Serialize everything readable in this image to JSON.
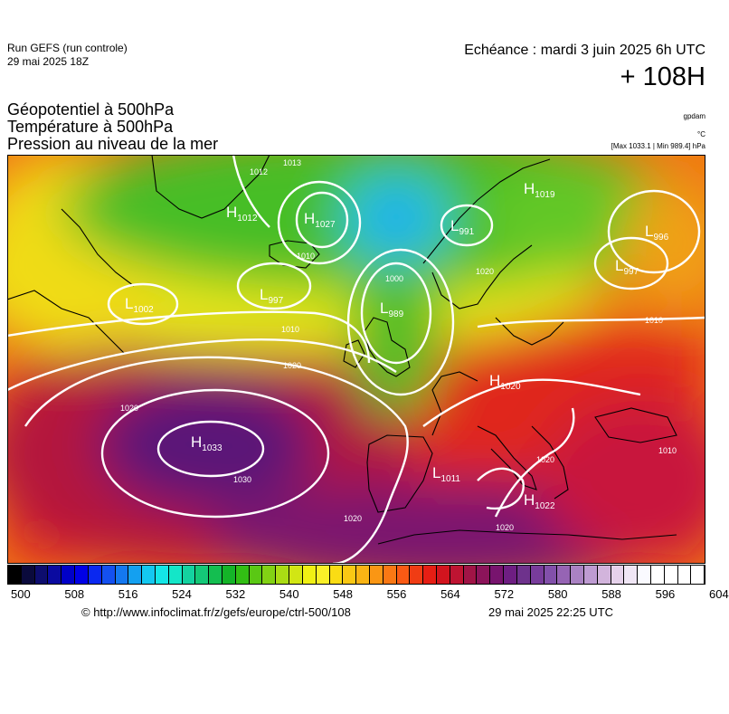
{
  "header": {
    "run_title": "Run GEFS (run controle)",
    "run_date": "29 mai 2025 18Z",
    "echeance": "Echéance : mardi 3 juin 2025 6h UTC",
    "leadtime": "+ 108H"
  },
  "parameters": {
    "line1": "Géopotentiel à 500hPa",
    "line2": "Température à 500hPa",
    "line3": "Pression au niveau de la mer"
  },
  "units": {
    "geopotential": "gpdam",
    "temperature": "°C",
    "pressure_range": "[Max 1033.1 | Min 989.4] hPa"
  },
  "pressure_centers": [
    {
      "type": "H",
      "value": "1033"
    },
    {
      "type": "H",
      "value": "1027"
    },
    {
      "type": "H",
      "value": "1012"
    },
    {
      "type": "H",
      "value": "1020"
    },
    {
      "type": "H",
      "value": "1022"
    },
    {
      "type": "H",
      "value": "1019"
    },
    {
      "type": "L",
      "value": "989"
    },
    {
      "type": "L",
      "value": "991"
    },
    {
      "type": "L",
      "value": "997"
    },
    {
      "type": "L",
      "value": "997"
    },
    {
      "type": "L",
      "value": "996"
    },
    {
      "type": "L",
      "value": "1002"
    },
    {
      "type": "L",
      "value": "1011"
    }
  ],
  "isobar_labels": [
    "1000",
    "1010",
    "1010",
    "1020",
    "1020",
    "1020",
    "1030",
    "1020",
    "1020",
    "1010",
    "1010",
    "1012",
    "1013",
    "1020"
  ],
  "colorbar": {
    "min": 500,
    "max": 604,
    "step": 2,
    "tick_labels": [
      "500",
      "508",
      "516",
      "524",
      "532",
      "540",
      "548",
      "556",
      "564",
      "572",
      "580",
      "588",
      "596",
      "604"
    ],
    "colors": [
      "#000000",
      "#0a0a3c",
      "#0d0d6e",
      "#0a0aa0",
      "#0000c8",
      "#0000e6",
      "#0a28f0",
      "#1450f0",
      "#1478f0",
      "#14a0f0",
      "#14c8f0",
      "#14e6e6",
      "#14e6c8",
      "#14d2a0",
      "#14c878",
      "#14be50",
      "#14b428",
      "#32be14",
      "#5ac814",
      "#82d214",
      "#aadc14",
      "#d2e614",
      "#f0f014",
      "#faf028",
      "#fadc14",
      "#fac814",
      "#fab414",
      "#fa9614",
      "#fa7814",
      "#fa5a14",
      "#f03c14",
      "#e61e14",
      "#d2141e",
      "#be1432",
      "#a01446",
      "#8c145a",
      "#78146e",
      "#6e1e82",
      "#6e328c",
      "#783c9b",
      "#8250aa",
      "#9664b4",
      "#aa82c3",
      "#be9bd2",
      "#d2b4dc",
      "#e6d2eb",
      "#f0e6f5",
      "#fafaff",
      "#ffffff",
      "#ffffff",
      "#ffffff",
      "#ffffff"
    ]
  },
  "footer": {
    "source": "© http://www.infoclimat.fr/z/gefs/europe/ctrl-500/108",
    "generated": "29 mai 2025 22:25 UTC"
  },
  "map_colors": {
    "purple": "#6a1478",
    "red": "#e01e1e",
    "orange": "#f5821e",
    "yellow": "#f0e614",
    "green": "#46be28",
    "cyan": "#1ec8e6",
    "blue": "#1e82f0"
  }
}
